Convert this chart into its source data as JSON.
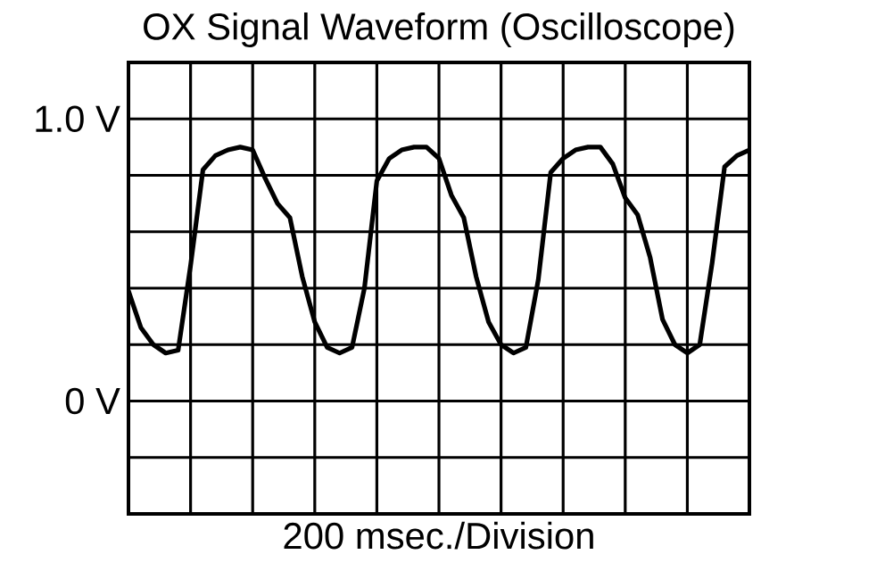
{
  "chart_data": {
    "type": "line",
    "title": "OX Signal Waveform (Oscilloscope)",
    "xlabel": "200 msec./Division",
    "categories": [
      null,
      null,
      null,
      null,
      null,
      null,
      null,
      null,
      null,
      null,
      null,
      null,
      null,
      null,
      null,
      null,
      null,
      null,
      null,
      null,
      null,
      null,
      null,
      null,
      null,
      null,
      null,
      null,
      null,
      null,
      null,
      null,
      null,
      null,
      null,
      null,
      null,
      null,
      null,
      null,
      null,
      null,
      null,
      null,
      null,
      null,
      null,
      null,
      null,
      null,
      null
    ],
    "series": [
      {
        "color": "#000000",
        "values": [
          0.39,
          0.26,
          0.2,
          0.17,
          0.18,
          0.48,
          0.82,
          0.87,
          0.89,
          0.9,
          0.89,
          0.79,
          0.7,
          0.65,
          0.44,
          0.28,
          0.19,
          0.17,
          0.19,
          0.4,
          0.78,
          0.86,
          0.89,
          0.9,
          0.9,
          0.86,
          0.73,
          0.65,
          0.44,
          0.28,
          0.2,
          0.17,
          0.19,
          0.43,
          0.81,
          0.86,
          0.89,
          0.9,
          0.9,
          0.84,
          0.72,
          0.66,
          0.51,
          0.29,
          0.2,
          0.17,
          0.2,
          0.49,
          0.83,
          0.87,
          0.89
        ]
      }
    ],
    "ylim": [
      -0.4,
      1.2
    ],
    "yticks": [
      {
        "value": -0.4,
        "label": null
      },
      {
        "value": -0.2,
        "label": null
      },
      {
        "value": 0,
        "label": "0 V"
      },
      {
        "value": 0.2,
        "label": null
      },
      {
        "value": 0.4,
        "label": null
      },
      {
        "value": 0.6,
        "label": null
      },
      {
        "value": 0.8,
        "label": null
      },
      {
        "value": 1.0,
        "label": "1.0 V"
      },
      {
        "value": 1.2,
        "label": null
      }
    ],
    "tick_labels": "y",
    "grid": true,
    "marker": "none",
    "line_style": "solid"
  }
}
